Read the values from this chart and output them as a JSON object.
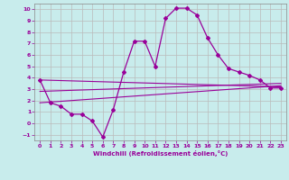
{
  "xlabel": "Windchill (Refroidissement éolien,°C)",
  "bg_color": "#c8ecec",
  "line_color": "#990099",
  "grid_color": "#bbbbbb",
  "xlim": [
    -0.5,
    23.5
  ],
  "ylim": [
    -1.5,
    10.5
  ],
  "xticks": [
    0,
    1,
    2,
    3,
    4,
    5,
    6,
    7,
    8,
    9,
    10,
    11,
    12,
    13,
    14,
    15,
    16,
    17,
    18,
    19,
    20,
    21,
    22,
    23
  ],
  "yticks": [
    -1,
    0,
    1,
    2,
    3,
    4,
    5,
    6,
    7,
    8,
    9,
    10
  ],
  "main_x": [
    0,
    1,
    2,
    3,
    4,
    5,
    6,
    7,
    8,
    9,
    10,
    11,
    12,
    13,
    14,
    15,
    16,
    17,
    18,
    19,
    20,
    21,
    22,
    23
  ],
  "main_y": [
    3.8,
    1.8,
    1.5,
    0.8,
    0.8,
    0.2,
    -1.2,
    1.2,
    4.5,
    7.2,
    7.2,
    5.0,
    9.2,
    10.1,
    10.1,
    9.5,
    7.5,
    6.0,
    4.8,
    4.5,
    4.2,
    3.8,
    3.1,
    3.1
  ],
  "trend1_x": [
    0,
    23
  ],
  "trend1_y": [
    3.8,
    3.2
  ],
  "trend2_x": [
    0,
    23
  ],
  "trend2_y": [
    2.8,
    3.5
  ],
  "trend3_x": [
    0,
    23
  ],
  "trend3_y": [
    1.8,
    3.3
  ]
}
